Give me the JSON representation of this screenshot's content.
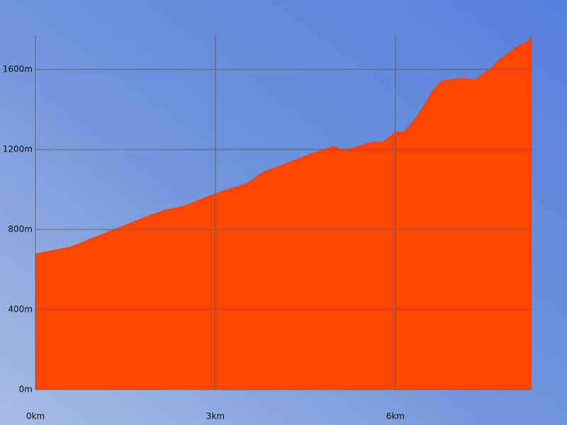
{
  "chart_data": {
    "type": "area",
    "x": [
      0,
      0.59,
      1.18,
      1.77,
      2.13,
      2.48,
      3.0,
      3.54,
      3.78,
      4.13,
      4.49,
      4.96,
      5.14,
      5.31,
      5.61,
      5.79,
      6.0,
      6.14,
      6.32,
      6.5,
      6.61,
      6.76,
      7.09,
      7.32,
      7.56,
      7.74,
      8.03,
      8.21,
      8.27
    ],
    "series": [
      {
        "color": "#ff4500",
        "values": [
          680,
          715,
          786,
          857,
          896,
          920,
          981,
          1034,
          1087,
          1126,
          1168,
          1218,
          1200,
          1211,
          1239,
          1239,
          1288,
          1288,
          1352,
          1434,
          1494,
          1543,
          1558,
          1550,
          1600,
          1653,
          1717,
          1742,
          1770
        ]
      }
    ],
    "xlim": [
      0,
      8.27
    ],
    "ylim": [
      0,
      1770
    ],
    "xticks": [
      {
        "value": 0,
        "label": "0km"
      },
      {
        "value": 3,
        "label": "3km"
      },
      {
        "value": 6,
        "label": "6km"
      }
    ],
    "yticks": [
      {
        "value": 0,
        "label": "0m"
      },
      {
        "value": 400,
        "label": "400m"
      },
      {
        "value": 800,
        "label": "800m"
      },
      {
        "value": 1200,
        "label": "1200m"
      },
      {
        "value": 1600,
        "label": "1600m"
      }
    ],
    "grid": true
  }
}
